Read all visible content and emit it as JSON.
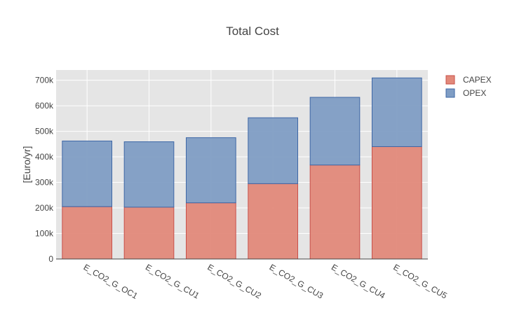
{
  "chart_data": {
    "type": "bar",
    "barmode": "stack",
    "title": "Total Cost",
    "xlabel": "",
    "ylabel": "[Euro/yr]",
    "categories": [
      "E_CO2_G_OC1",
      "E_CO2_G_CU1",
      "E_CO2_G_CU2",
      "E_CO2_G_CU3",
      "E_CO2_G_CU4",
      "E_CO2_G_CU5"
    ],
    "series": [
      {
        "name": "CAPEX",
        "color": "#e2897a",
        "edge_color": "#c8504a",
        "values": [
          205000,
          203000,
          220000,
          295000,
          368000,
          440000
        ]
      },
      {
        "name": "OPEX",
        "color": "#7f9dc4",
        "edge_color": "#3e67a6",
        "values": [
          257000,
          256000,
          255000,
          258000,
          265000,
          269000
        ]
      }
    ],
    "ylim": [
      0,
      740000
    ],
    "yticks": [
      0,
      100000,
      200000,
      300000,
      400000,
      500000,
      600000,
      700000
    ],
    "ytick_labels": [
      "0",
      "100k",
      "200k",
      "300k",
      "400k",
      "500k",
      "600k",
      "700k"
    ],
    "grid": true,
    "plot_background": "#e5e5e5",
    "legend_position": "top-right"
  }
}
